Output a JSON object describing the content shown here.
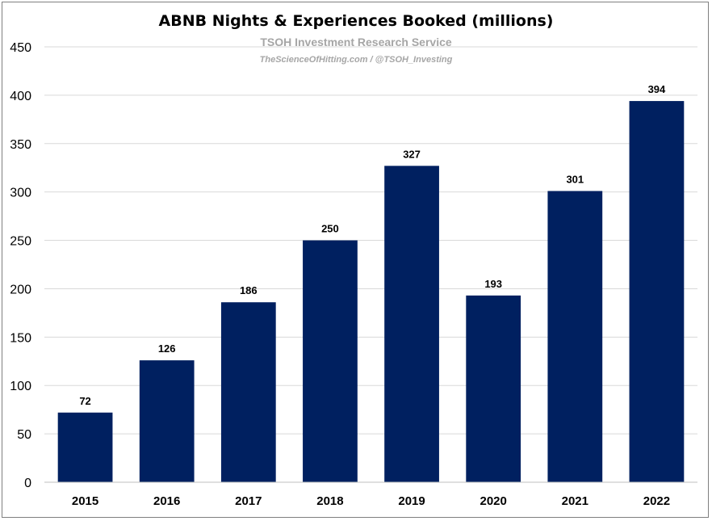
{
  "chart_data": {
    "type": "bar",
    "title": "ABNB Nights & Experiences Booked (millions)",
    "watermark": {
      "line1": "TSOH Investment Research Service",
      "line2": "TheScienceOfHitting.com / @TSOH_Investing"
    },
    "categories": [
      "2015",
      "2016",
      "2017",
      "2018",
      "2019",
      "2020",
      "2021",
      "2022"
    ],
    "values": [
      72,
      126,
      186,
      250,
      327,
      193,
      301,
      394
    ],
    "data_labels": [
      "72",
      "126",
      "186",
      "250",
      "327",
      "193",
      "301",
      "394"
    ],
    "xlabel": "",
    "ylabel": "",
    "ylim": [
      0,
      450
    ],
    "yticks": [
      0,
      50,
      100,
      150,
      200,
      250,
      300,
      350,
      400,
      450
    ],
    "grid": true,
    "legend": "none",
    "colors": {
      "bar": "#002060",
      "grid": "#d9d9d9",
      "axis": "#bfbfbf"
    }
  }
}
